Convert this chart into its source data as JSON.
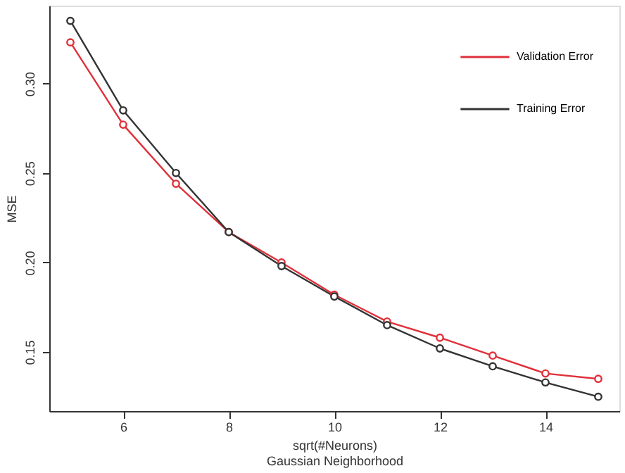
{
  "chart_data": {
    "type": "line",
    "xlabel": "sqrt(#Neurons)\nGaussian Neighborhood",
    "ylabel": "MSE",
    "x": [
      5,
      6,
      7,
      8,
      9,
      10,
      11,
      12,
      13,
      14,
      15
    ],
    "series": [
      {
        "name": "Validation Error",
        "color": "#e0303a",
        "values": [
          0.323,
          0.277,
          0.244,
          0.217,
          0.2,
          0.182,
          0.167,
          0.158,
          0.148,
          0.138,
          0.135
        ]
      },
      {
        "name": "Training Error",
        "color": "#333333",
        "values": [
          0.335,
          0.285,
          0.25,
          0.217,
          0.198,
          0.181,
          0.165,
          0.152,
          0.142,
          0.133,
          0.125
        ]
      }
    ],
    "xlim": [
      4.6,
      15.4
    ],
    "ylim": [
      0.117,
      0.3435
    ],
    "xticks": [
      6,
      8,
      10,
      12,
      14
    ],
    "yticks": [
      0.15,
      {
        "value": 0.2,
        "label": "0.20"
      },
      0.25,
      {
        "value": 0.3,
        "label": "0.30"
      }
    ],
    "marker": "circle",
    "line_style": "solid",
    "legend": "top right",
    "grid": false
  }
}
